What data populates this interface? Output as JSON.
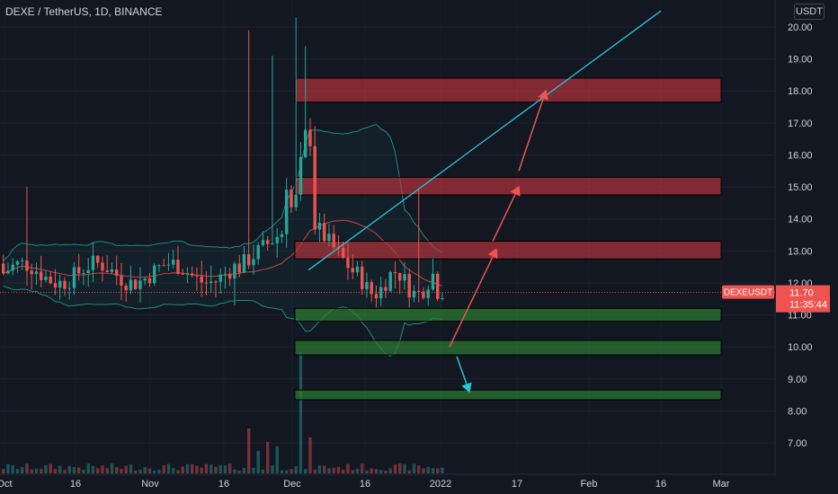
{
  "header": {
    "title": "DEXE / TetherUS, 1D, BINANCE",
    "currency": "USDT"
  },
  "colors": {
    "background": "#131722",
    "up": "#26a69a",
    "down": "#ef5350",
    "resistance": "#b2333c",
    "support": "#2e7d32",
    "trendline": "#26c6da",
    "arrow": "#ef5350",
    "band": "#1e8c7e"
  },
  "price_label": {
    "symbol": "DEXEUSDT",
    "price": "11.70",
    "countdown": "11:35:44"
  },
  "chart_data": {
    "type": "candlestick",
    "y_range": [
      6.2,
      20.4
    ],
    "y_ticks": [
      "20.00",
      "19.00",
      "18.00",
      "17.00",
      "16.00",
      "15.00",
      "14.00",
      "13.00",
      "12.00",
      "11.00",
      "10.00",
      "9.00",
      "8.00",
      "7.00"
    ],
    "x_ticks": [
      "Oct",
      "16",
      "Nov",
      "16",
      "Dec",
      "16",
      "2022",
      "17",
      "Feb",
      "16",
      "Mar"
    ],
    "current_price": 11.7,
    "zones": [
      {
        "kind": "resistance",
        "low": 17.65,
        "high": 18.4
      },
      {
        "kind": "resistance",
        "low": 14.75,
        "high": 15.3
      },
      {
        "kind": "resistance",
        "low": 12.75,
        "high": 13.3
      },
      {
        "kind": "support",
        "low": 10.8,
        "high": 11.2
      },
      {
        "kind": "support",
        "low": 9.75,
        "high": 10.2
      },
      {
        "kind": "support",
        "low": 8.35,
        "high": 8.65
      }
    ]
  }
}
